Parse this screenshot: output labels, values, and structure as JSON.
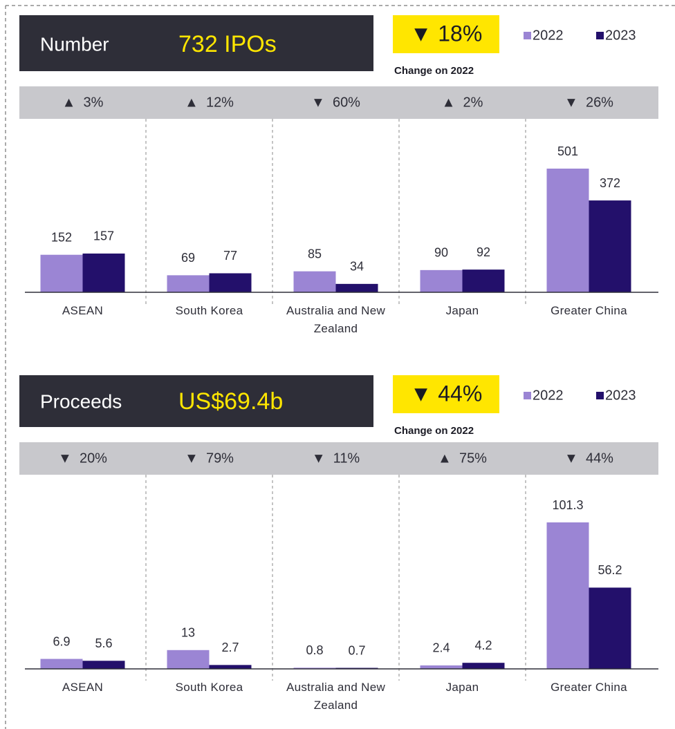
{
  "chart_data": [
    {
      "type": "bar",
      "title": "Number",
      "headline": "732 IPOs",
      "change": "▼ 18%",
      "change_note": "Change on 2022",
      "categories": [
        "ASEAN",
        "South Korea",
        "Australia and New Zealand",
        "Japan",
        "Greater China"
      ],
      "category_changes": [
        "▲  3%",
        "▲  12%",
        "▼  60%",
        "▲  2%",
        "▼  26%"
      ],
      "series": [
        {
          "name": "2022",
          "color": "#9b85d4",
          "values": [
            152,
            69,
            85,
            90,
            501
          ]
        },
        {
          "name": "2023",
          "color": "#23106b",
          "values": [
            157,
            77,
            34,
            92,
            372
          ]
        }
      ]
    },
    {
      "type": "bar",
      "title": "Proceeds",
      "headline": "US$69.4b",
      "change": "▼ 44%",
      "change_note": "Change on 2022",
      "categories": [
        "ASEAN",
        "South Korea",
        "Australia and New Zealand",
        "Japan",
        "Greater China"
      ],
      "category_changes": [
        "▼  20%",
        "▼  79%",
        "▼  11%",
        "▲  75%",
        "▼  44%"
      ],
      "series": [
        {
          "name": "2022",
          "color": "#9b85d4",
          "values": [
            6.9,
            13,
            0.8,
            2.4,
            101.3
          ]
        },
        {
          "name": "2023",
          "color": "#23106b",
          "values": [
            5.6,
            2.7,
            0.7,
            4.2,
            56.2
          ]
        }
      ]
    }
  ]
}
